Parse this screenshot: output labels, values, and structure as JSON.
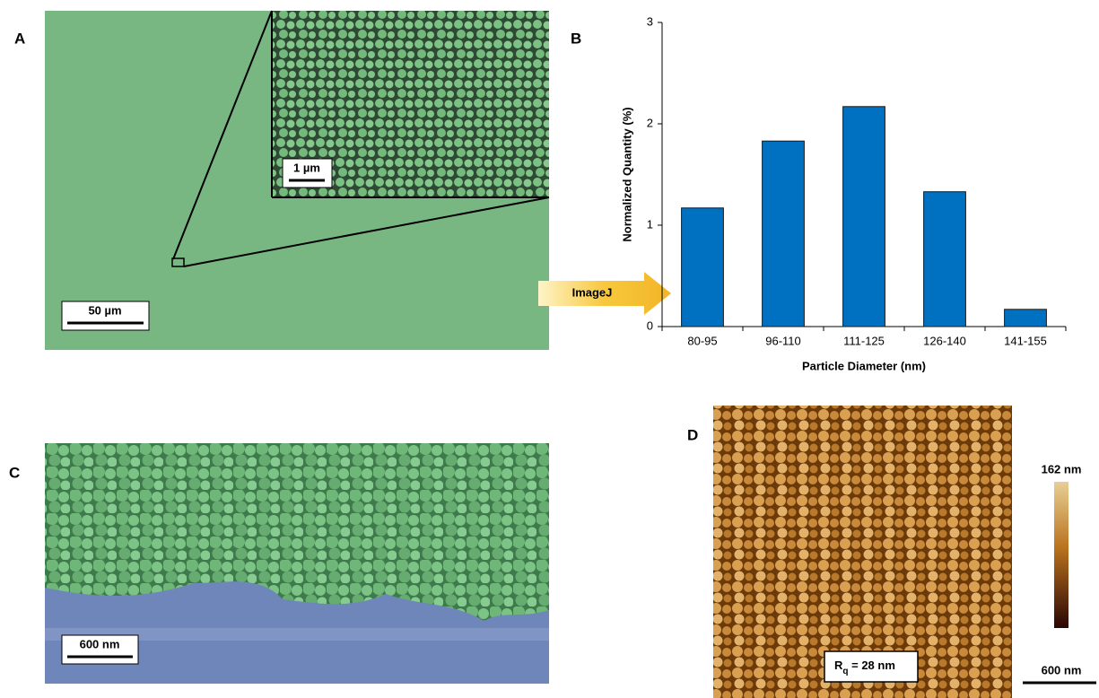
{
  "figure": {
    "panel_a": {
      "label": "A",
      "scale_bar": "50 µm",
      "inset_scale_bar": "1 µm"
    },
    "arrow_label": "ImageJ",
    "panel_b": {
      "label": "B"
    },
    "panel_c": {
      "label": "C",
      "scale_bar": "600 nm"
    },
    "panel_d": {
      "label": "D",
      "scale_bar": "600 nm",
      "colorbar_max": "162 nm",
      "roughness_symbol": "R",
      "roughness_subscript": "q",
      "roughness_value": " = 28 nm"
    }
  },
  "chart_data": {
    "type": "bar",
    "x_label": "Particle Diameter (nm)",
    "y_label": "Normalized Quantity (%)",
    "categories": [
      "80-95",
      "96-110",
      "111-125",
      "126-140",
      "141-155"
    ],
    "values": [
      1.17,
      1.83,
      2.17,
      1.33,
      0.17
    ],
    "color": "#0070c0",
    "ylim": [
      0,
      3
    ],
    "yticks": [
      0,
      1,
      2,
      3
    ],
    "grid": false
  }
}
